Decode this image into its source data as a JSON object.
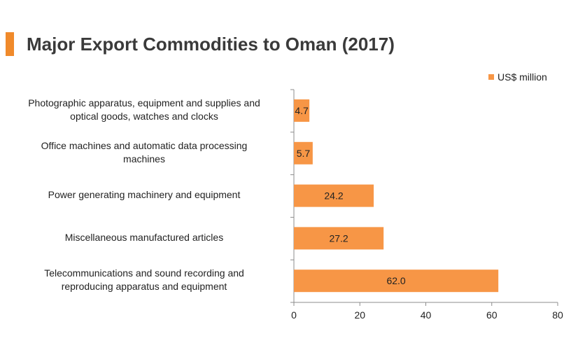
{
  "title": "Major Export Commodities to Oman (2017)",
  "colors": {
    "accent": "#F08A2B",
    "bar": "#F79646",
    "axis": "#8C8C8C"
  },
  "chart_data": {
    "type": "bar",
    "orientation": "horizontal",
    "title": "Major Export Commodities to Oman (2017)",
    "legend_position": "top-right",
    "grid": false,
    "xlim": [
      0,
      80
    ],
    "xticks": [
      0,
      20,
      40,
      60,
      80
    ],
    "categories": [
      [
        "Photographic apparatus, equipment and supplies and",
        "optical goods, watches and clocks"
      ],
      [
        "Office machines and automatic data processing",
        "machines"
      ],
      [
        "Power generating machinery and equipment"
      ],
      [
        "Miscellaneous manufactured articles"
      ],
      [
        "Telecommunications and sound recording and",
        "reproducing apparatus and equipment"
      ]
    ],
    "series": [
      {
        "name": "US$ million",
        "values": [
          4.7,
          5.7,
          24.2,
          27.2,
          62.0
        ],
        "labels": [
          "4.7",
          "5.7",
          "24.2",
          "27.2",
          "62.0"
        ]
      }
    ]
  }
}
